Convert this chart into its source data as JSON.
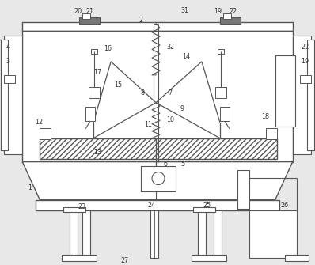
{
  "bg_color": "#e8e8e8",
  "line_color": "#555555",
  "label_color": "#333333",
  "fig_width": 3.98,
  "fig_height": 3.35
}
